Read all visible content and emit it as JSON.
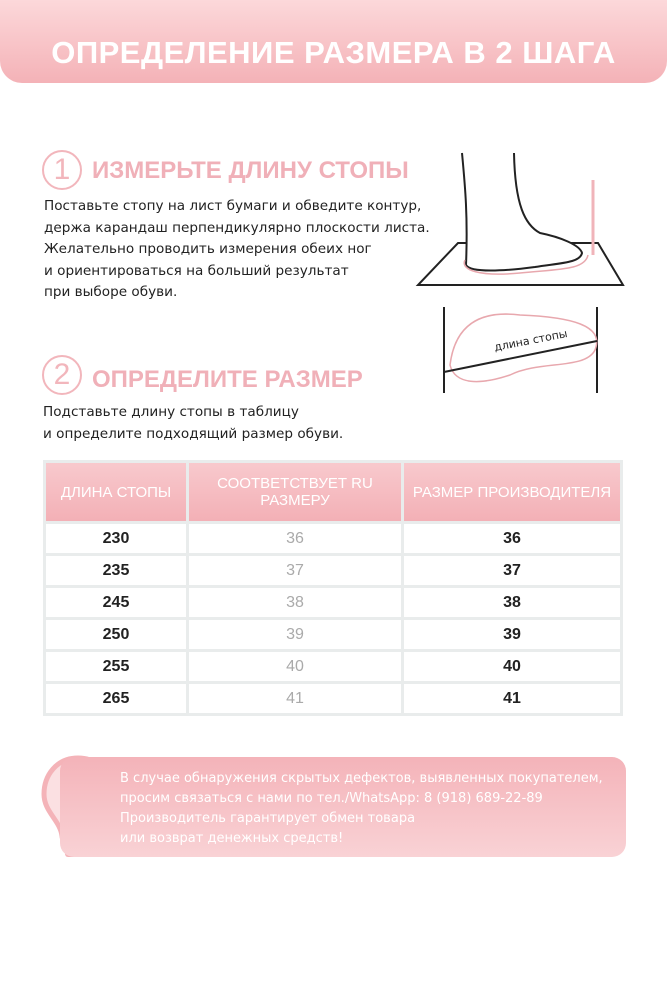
{
  "header": {
    "title": "ОПРЕДЕЛЕНИЕ РАЗМЕРА В 2 ШАГА"
  },
  "step1": {
    "number": "1",
    "title": "ИЗМЕРЬТЕ ДЛИНУ СТОПЫ",
    "lines": [
      "Поставьте стопу на лист бумаги и обведите контур,",
      "держа карандаш перпендикулярно плоскости листа.",
      "Желательно проводить измерения обеих ног",
      "и ориентироваться на больший результат",
      "при выборе обуви."
    ]
  },
  "illustration": {
    "label": "длина стопы"
  },
  "step2": {
    "number": "2",
    "title": "ОПРЕДЕЛИТЕ РАЗМЕР",
    "lines": [
      "Подставьте длину стопы в таблицу",
      "и определите подходящий размер обуви."
    ]
  },
  "table": {
    "headers": [
      "ДЛИНА СТОПЫ",
      "СООТВЕТСТВУЕТ RU РАЗМЕРУ",
      "РАЗМЕР ПРОИЗВОДИТЕЛЯ"
    ],
    "rows": [
      [
        "230",
        "36",
        "36"
      ],
      [
        "235",
        "37",
        "37"
      ],
      [
        "245",
        "38",
        "38"
      ],
      [
        "250",
        "39",
        "39"
      ],
      [
        "255",
        "40",
        "40"
      ],
      [
        "265",
        "41",
        "41"
      ]
    ]
  },
  "notice": {
    "icon": "lightbulb-exclamation-icon",
    "lines": [
      "В случае обнаружения скрытых дефектов, выявленных покупателем,",
      "просим связаться с нами по тел./WhatsApp: 8 (918) 689-22-89",
      "Производитель гарантирует обмен товара",
      "или возврат денежных средств!"
    ]
  },
  "colors": {
    "accent": "#f4b3b8",
    "text": "#222222",
    "muted": "#aaaaaa"
  }
}
